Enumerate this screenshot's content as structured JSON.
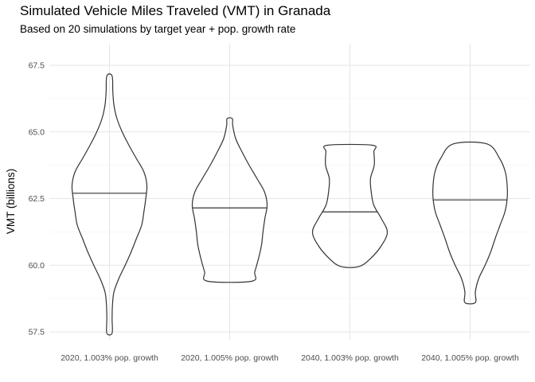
{
  "chart_data": {
    "type": "violin",
    "title": "Simulated Vehicle Miles Traveled (VMT) in Granada",
    "subtitle": "Based on 20 simulations by target year + pop. growth rate",
    "xlabel": "",
    "ylabel": "VMT (billions)",
    "ylim": [
      57.2,
      67.5
    ],
    "yticks": [
      "57.5",
      "60.0",
      "62.5",
      "65.0",
      "67.5"
    ],
    "ytick_values": [
      57.5,
      60.0,
      62.5,
      65.0,
      67.5
    ],
    "grid": true,
    "categories": [
      "2020, 1.003% pop. growth",
      "2020, 1.005% pop. growth",
      "2040, 1.003% pop. growth",
      "2040, 1.005% pop. growth"
    ],
    "series": [
      {
        "category": "2020, 1.003% pop. growth",
        "min": 57.45,
        "max": 67.1,
        "median": 62.7,
        "density": [
          [
            57.45,
            0.07
          ],
          [
            58.0,
            0.07
          ],
          [
            58.5,
            0.08
          ],
          [
            59.0,
            0.12
          ],
          [
            59.5,
            0.25
          ],
          [
            60.0,
            0.42
          ],
          [
            60.5,
            0.58
          ],
          [
            61.0,
            0.72
          ],
          [
            61.5,
            0.86
          ],
          [
            62.0,
            0.92
          ],
          [
            62.5,
            0.97
          ],
          [
            63.0,
            1.0
          ],
          [
            63.5,
            0.92
          ],
          [
            64.0,
            0.72
          ],
          [
            64.5,
            0.52
          ],
          [
            65.0,
            0.34
          ],
          [
            65.5,
            0.2
          ],
          [
            66.0,
            0.12
          ],
          [
            66.5,
            0.09
          ],
          [
            67.1,
            0.07
          ]
        ]
      },
      {
        "category": "2020, 1.005% pop. growth",
        "min": 59.4,
        "max": 65.5,
        "median": 62.15,
        "density": [
          [
            59.4,
            0.59
          ],
          [
            59.75,
            0.67
          ],
          [
            60.25,
            0.77
          ],
          [
            60.75,
            0.85
          ],
          [
            61.25,
            0.89
          ],
          [
            61.75,
            0.94
          ],
          [
            62.25,
            1.0
          ],
          [
            62.75,
            0.93
          ],
          [
            63.25,
            0.73
          ],
          [
            63.75,
            0.52
          ],
          [
            64.25,
            0.33
          ],
          [
            64.75,
            0.16
          ],
          [
            65.25,
            0.08
          ],
          [
            65.5,
            0.07
          ]
        ]
      },
      {
        "category": "2040, 1.003% pop. growth",
        "min": 59.95,
        "max": 64.5,
        "median": 62.0,
        "density": [
          [
            59.95,
            0.24
          ],
          [
            60.25,
            0.55
          ],
          [
            60.75,
            0.85
          ],
          [
            61.25,
            1.0
          ],
          [
            61.75,
            0.84
          ],
          [
            62.25,
            0.64
          ],
          [
            62.75,
            0.57
          ],
          [
            63.25,
            0.55
          ],
          [
            63.75,
            0.65
          ],
          [
            64.25,
            0.64
          ],
          [
            64.5,
            0.6
          ]
        ]
      },
      {
        "category": "2040, 1.005% pop. growth",
        "min": 58.6,
        "max": 64.55,
        "median": 62.45,
        "density": [
          [
            58.6,
            0.14
          ],
          [
            59.0,
            0.14
          ],
          [
            59.5,
            0.23
          ],
          [
            60.0,
            0.4
          ],
          [
            60.5,
            0.55
          ],
          [
            61.0,
            0.67
          ],
          [
            61.5,
            0.8
          ],
          [
            62.0,
            0.93
          ],
          [
            62.5,
            0.99
          ],
          [
            63.0,
            0.99
          ],
          [
            63.5,
            0.94
          ],
          [
            64.0,
            0.79
          ],
          [
            64.55,
            0.45
          ]
        ]
      }
    ]
  }
}
